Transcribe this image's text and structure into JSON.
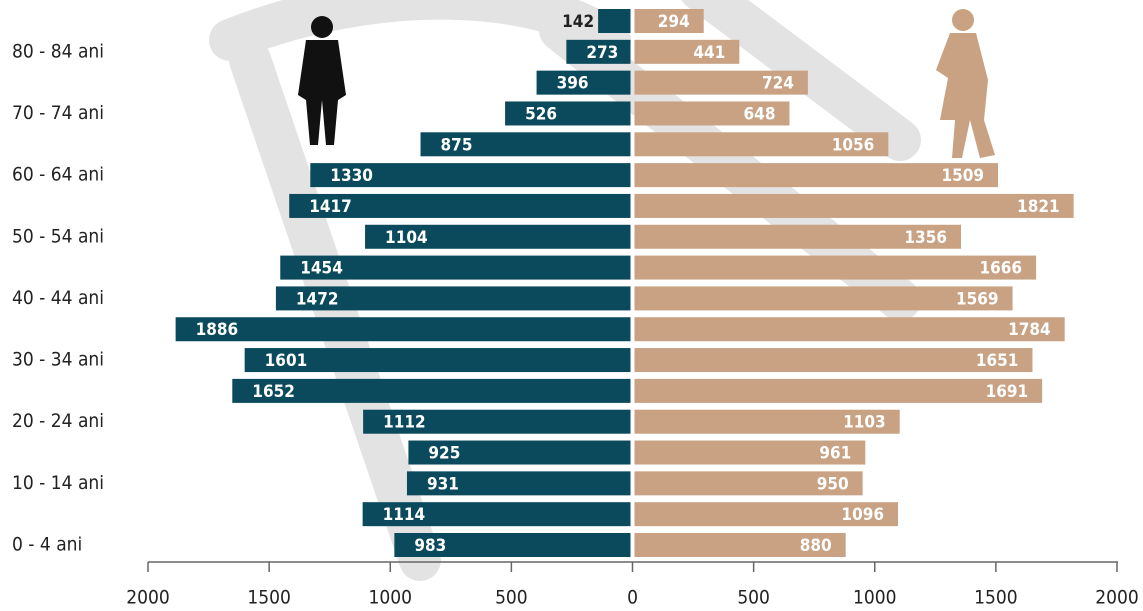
{
  "chart_data": {
    "type": "pyramid",
    "categories": [
      null,
      "80 - 84 ani",
      null,
      "70 - 74 ani",
      null,
      "60 - 64 ani",
      null,
      "50 - 54 ani",
      null,
      "40 - 44 ani",
      null,
      "30 - 34 ani",
      null,
      "20 - 24 ani",
      null,
      "10 - 14 ani",
      null,
      "0 - 4 ani"
    ],
    "series": [
      {
        "color": "#0b4a5c",
        "side": "left",
        "values": [
          142,
          273,
          396,
          526,
          875,
          1330,
          1417,
          1104,
          1454,
          1472,
          1886,
          1601,
          1652,
          1112,
          925,
          931,
          1114,
          983
        ]
      },
      {
        "color": "#c8a283",
        "side": "right",
        "values": [
          294,
          441,
          724,
          648,
          1056,
          1509,
          1821,
          1356,
          1666,
          1569,
          1784,
          1651,
          1691,
          1103,
          961,
          950,
          1096,
          880
        ]
      }
    ],
    "xlim": [
      -2000,
      2000
    ],
    "xticks": [
      {
        "value": -2000,
        "label": "2000"
      },
      {
        "value": -1500,
        "label": "1500"
      },
      {
        "value": -1000,
        "label": "1000"
      },
      {
        "value": -500,
        "label": "500"
      },
      0,
      500,
      1000,
      1500,
      2000
    ]
  }
}
